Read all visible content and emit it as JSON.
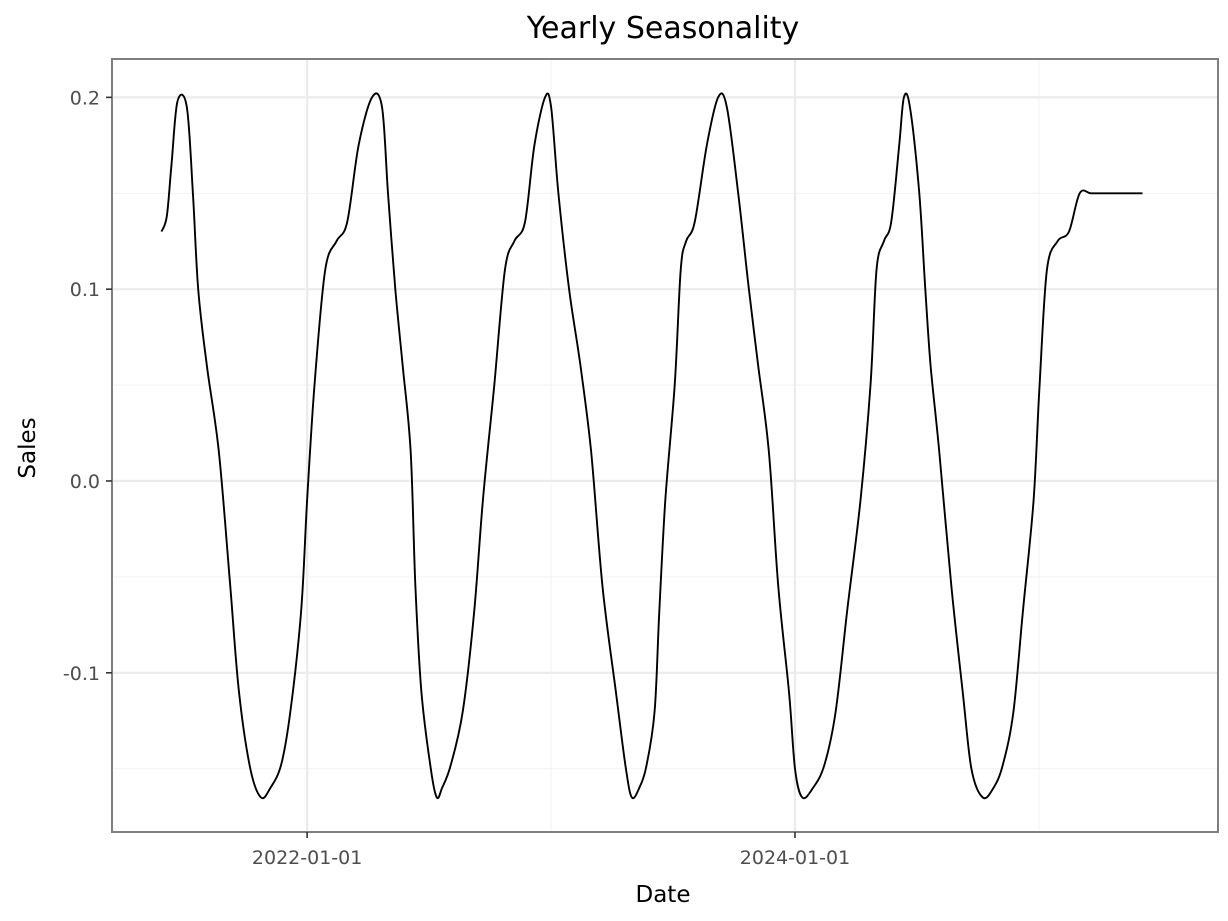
{
  "chart_data": {
    "type": "line",
    "title": "Yearly Seasonality",
    "xlabel": "Date",
    "ylabel": "Sales",
    "x_tick_labels": [
      "2022-01-01",
      "2024-01-01"
    ],
    "y_tick_labels": [
      "-0.1",
      "0.0",
      "0.1",
      "0.2"
    ],
    "ylim": [
      -0.183,
      0.22
    ],
    "xlim": [
      "2021-03-15",
      "2025-09-25"
    ],
    "grid": true,
    "legend": "none",
    "line_color": "#000000",
    "series": [
      {
        "x": [
          "2021-05-28",
          "2021-06-05",
          "2021-06-12",
          "2021-06-21",
          "2021-07-05",
          "2021-07-14",
          "2021-07-22",
          "2021-08-04",
          "2021-08-22",
          "2021-09-08",
          "2021-09-21",
          "2021-10-08",
          "2021-10-24",
          "2021-11-07",
          "2021-11-23",
          "2021-12-07",
          "2021-12-23",
          "2022-01-01",
          "2022-01-12",
          "2022-01-28",
          "2022-02-14",
          "2022-03-02",
          "2022-03-19",
          "2022-04-08",
          "2022-04-23",
          "2022-05-02",
          "2022-05-13",
          "2022-05-24",
          "2022-06-05",
          "2022-06-12",
          "2022-06-21",
          "2022-07-05",
          "2022-07-14",
          "2022-07-22",
          "2022-08-04",
          "2022-08-22",
          "2022-09-08",
          "2022-09-21",
          "2022-10-08",
          "2022-10-24",
          "2022-11-07",
          "2022-11-23",
          "2022-12-07",
          "2022-12-23",
          "2023-01-01",
          "2023-01-12",
          "2023-01-28",
          "2023-02-14",
          "2023-03-02",
          "2023-03-19",
          "2023-04-08",
          "2023-04-23",
          "2023-05-02",
          "2023-05-13",
          "2023-05-24",
          "2023-06-05",
          "2023-06-12",
          "2023-06-21",
          "2023-07-05",
          "2023-07-14",
          "2023-07-22",
          "2023-08-04",
          "2023-08-22",
          "2023-09-08",
          "2023-09-21",
          "2023-10-08",
          "2023-10-24",
          "2023-11-07",
          "2023-11-23",
          "2023-12-07",
          "2023-12-23",
          "2024-01-01",
          "2024-01-12",
          "2024-01-28",
          "2024-02-14",
          "2024-03-02",
          "2024-03-19",
          "2024-04-08",
          "2024-04-23",
          "2024-05-02",
          "2024-05-13",
          "2024-05-24",
          "2024-06-05",
          "2024-06-12",
          "2024-06-21",
          "2024-07-05",
          "2024-07-14",
          "2024-07-22",
          "2024-08-04",
          "2024-08-22",
          "2024-09-08",
          "2024-09-21",
          "2024-10-08",
          "2024-10-24",
          "2024-11-07",
          "2024-11-23",
          "2024-12-07",
          "2024-12-23",
          "2025-01-01",
          "2025-01-12",
          "2025-01-28",
          "2025-02-14",
          "2025-03-02",
          "2025-03-19",
          "2025-04-08",
          "2025-04-23",
          "2025-05-02",
          "2025-05-13",
          "2025-05-24",
          "2025-06-04"
        ],
        "y": [
          0.13,
          0.138,
          0.165,
          0.198,
          0.195,
          0.15,
          0.1,
          0.06,
          0.015,
          -0.055,
          -0.11,
          -0.15,
          -0.165,
          -0.16,
          -0.148,
          -0.12,
          -0.068,
          -0.01,
          0.05,
          0.11,
          0.125,
          0.135,
          0.175,
          0.2,
          0.195,
          0.15,
          0.1,
          0.06,
          0.015,
          -0.055,
          -0.11,
          -0.15,
          -0.165,
          -0.16,
          -0.148,
          -0.12,
          -0.068,
          -0.01,
          0.05,
          0.11,
          0.125,
          0.135,
          0.175,
          0.2,
          0.195,
          0.15,
          0.1,
          0.06,
          0.015,
          -0.055,
          -0.11,
          -0.15,
          -0.165,
          -0.16,
          -0.148,
          -0.12,
          -0.068,
          -0.01,
          0.05,
          0.11,
          0.125,
          0.135,
          0.175,
          0.2,
          0.195,
          0.15,
          0.1,
          0.06,
          0.015,
          -0.055,
          -0.11,
          -0.15,
          -0.165,
          -0.16,
          -0.148,
          -0.12,
          -0.068,
          -0.01,
          0.05,
          0.11,
          0.125,
          0.135,
          0.175,
          0.2,
          0.195,
          0.15,
          0.1,
          0.06,
          0.015,
          -0.055,
          -0.11,
          -0.15,
          -0.165,
          -0.16,
          -0.148,
          -0.12,
          -0.068,
          -0.01,
          0.05,
          0.11,
          0.125,
          0.13,
          0.15,
          0.15,
          0.15,
          0.15,
          0.15,
          0.15,
          0.15,
          0.15
        ]
      }
    ]
  }
}
